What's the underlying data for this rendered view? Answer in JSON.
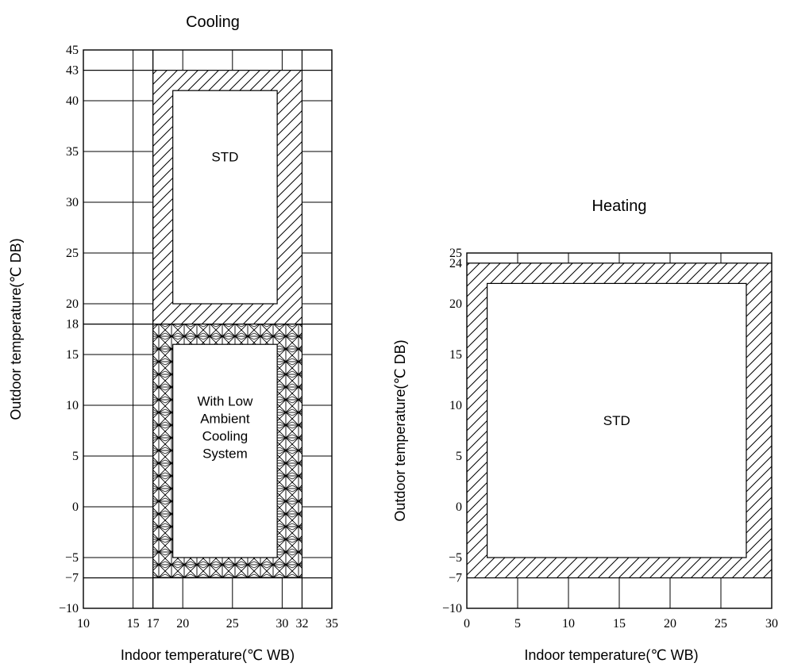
{
  "chart_data": [
    {
      "type": "area",
      "title": "Cooling",
      "xlabel": "Indoor temperature(℃ WB)",
      "ylabel": "Outdoor temperature(℃ DB)",
      "xlim": [
        10,
        35
      ],
      "ylim": [
        -10,
        45
      ],
      "x_ticks": [
        10,
        15,
        17,
        20,
        25,
        30,
        32,
        35
      ],
      "y_ticks": [
        -10,
        -7,
        -5,
        0,
        5,
        10,
        15,
        18,
        20,
        25,
        30,
        35,
        40,
        43,
        45
      ],
      "regions": [
        {
          "label": "STD",
          "outer": {
            "x": [
              17,
              32
            ],
            "y": [
              18,
              43
            ]
          },
          "inner": {
            "x": [
              19,
              29.5
            ],
            "y": [
              20,
              41
            ]
          },
          "pattern": "diagonal-hatch"
        },
        {
          "label": "With Low Ambient Cooling System",
          "label_lines": [
            "With Low",
            "Ambient",
            "Cooling",
            "System"
          ],
          "outer": {
            "x": [
              17,
              32
            ],
            "y": [
              -7,
              18
            ]
          },
          "inner": {
            "x": [
              19,
              29.5
            ],
            "y": [
              -5,
              16
            ]
          },
          "pattern": "cross-hatch"
        }
      ],
      "grid": true
    },
    {
      "type": "area",
      "title": "Heating",
      "xlabel": "Indoor temperature(℃ WB)",
      "ylabel": "Outdoor temperature(℃ DB)",
      "xlim": [
        0,
        30
      ],
      "ylim": [
        -10,
        25
      ],
      "x_ticks": [
        0,
        5,
        10,
        15,
        20,
        25,
        30
      ],
      "y_ticks": [
        -10,
        -7,
        -5,
        0,
        5,
        10,
        15,
        20,
        24,
        25
      ],
      "regions": [
        {
          "label": "STD",
          "outer": {
            "x": [
              0,
              30
            ],
            "y": [
              -7,
              24
            ]
          },
          "inner": {
            "x": [
              2,
              27.5
            ],
            "y": [
              -5,
              22
            ]
          },
          "pattern": "diagonal-hatch"
        }
      ],
      "grid": true
    }
  ]
}
